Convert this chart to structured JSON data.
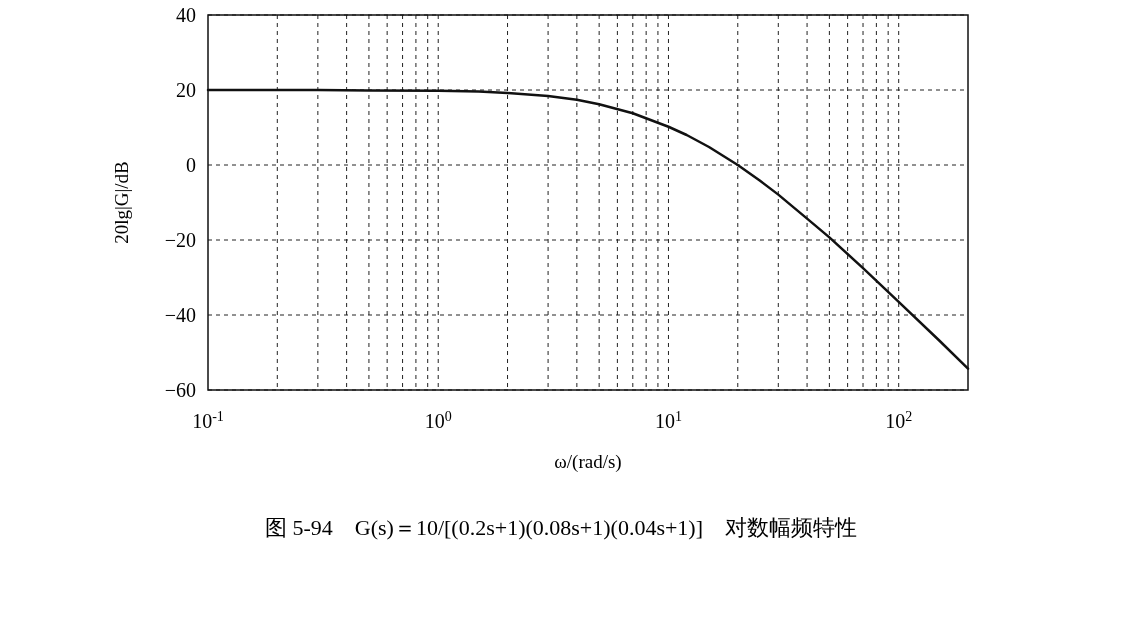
{
  "chart_data": {
    "type": "line",
    "xlabel": "ω/(rad/s)",
    "ylabel": "20lg|G|/dB",
    "log": "x",
    "grid": true,
    "marker": "none",
    "line_style": "solid",
    "xlim": [
      0.1,
      200
    ],
    "ylim": [
      -60,
      40
    ],
    "xticks": [
      {
        "value": 0.1,
        "label": "10$^{-1}$"
      },
      {
        "value": 1,
        "label": "10$^{0}$"
      },
      {
        "value": 10,
        "label": "10$^{1}$"
      },
      {
        "value": 100,
        "label": "10$^{2}$"
      }
    ],
    "yticks": [
      -60,
      -40,
      -20,
      0,
      20,
      40
    ],
    "series": [
      {
        "color": "#111111",
        "x": [
          0.1,
          0.3,
          0.5,
          1,
          1.5,
          2,
          3,
          4,
          5,
          7,
          10,
          12,
          15,
          20,
          25,
          30,
          40,
          50,
          70,
          100,
          150,
          200
        ],
        "values": [
          20,
          20,
          19.9,
          19.8,
          19.6,
          19.2,
          18.4,
          17.4,
          16.2,
          13.8,
          10.2,
          8,
          4.8,
          0,
          -4.2,
          -7.9,
          -14.3,
          -19.3,
          -27.5,
          -36.5,
          -46.8,
          -54.3
        ]
      }
    ],
    "annotations": [
      "图 5-94　G(s)＝10/[(0.2s+1)(0.08s+1)(0.04s+1)]　对数幅频特性"
    ]
  }
}
